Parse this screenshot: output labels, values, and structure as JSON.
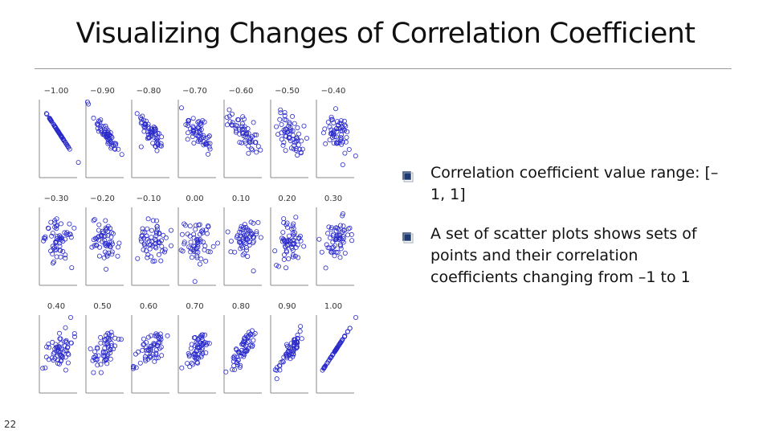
{
  "slide": {
    "title": "Visualizing Changes of Correlation Coefficient",
    "page_number": "22"
  },
  "bullets": [
    {
      "text": "Correlation coefficient value range: [–1, 1]",
      "marker_icon": "square-bullet-icon"
    },
    {
      "text": "A set of scatter plots shows sets of points and their correlation coefficients changing from –1 to 1",
      "marker_icon": "square-bullet-icon"
    }
  ],
  "colors": {
    "points": "#2a2acb",
    "axes": "#8a8a8a",
    "bullet_marker": "#1f3a6e",
    "rule": "#9a9a9a"
  },
  "chart_data": {
    "type": "scatter",
    "panel_labels": [
      "−1.00",
      "−0.90",
      "−0.80",
      "−0.70",
      "−0.60",
      "−0.50",
      "−0.40",
      "−0.30",
      "−0.20",
      "−0.10",
      "0.00",
      "0.10",
      "0.20",
      "0.30",
      "0.40",
      "0.50",
      "0.60",
      "0.70",
      "0.80",
      "0.90",
      "1.00"
    ],
    "correlations": [
      -1.0,
      -0.9,
      -0.8,
      -0.7,
      -0.6,
      -0.5,
      -0.4,
      -0.3,
      -0.2,
      -0.1,
      0.0,
      0.1,
      0.2,
      0.3,
      0.4,
      0.5,
      0.6,
      0.7,
      0.8,
      0.9,
      1.0
    ],
    "points_per_panel": 60,
    "marker": "open-circle",
    "grid": false
  }
}
